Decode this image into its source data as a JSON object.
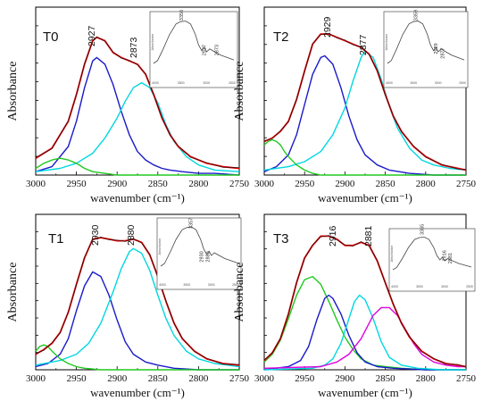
{
  "chart_data": [
    {
      "type": "line",
      "panel_label": "T0",
      "ylabel": "Absorbance",
      "xlabel": "wavenumber (cm⁻¹)",
      "xlim": [
        3000,
        2750
      ],
      "x_ticks": [
        "3000",
        "2950",
        "2900",
        "2850",
        "2800",
        "2750"
      ],
      "peak_labels": [
        "2927",
        "2873"
      ],
      "series": [
        {
          "color": "#e00000",
          "x": [
            3000,
            2980,
            2960,
            2950,
            2940,
            2930,
            2925,
            2915,
            2905,
            2895,
            2885,
            2875,
            2865,
            2855,
            2845,
            2835,
            2825,
            2810,
            2790,
            2770,
            2750
          ],
          "values": [
            0.1,
            0.16,
            0.32,
            0.48,
            0.66,
            0.8,
            0.82,
            0.8,
            0.73,
            0.7,
            0.68,
            0.66,
            0.6,
            0.48,
            0.34,
            0.24,
            0.17,
            0.11,
            0.07,
            0.05,
            0.04
          ]
        },
        {
          "color": "#1a1ac8",
          "x": [
            3000,
            2980,
            2960,
            2950,
            2940,
            2930,
            2925,
            2915,
            2905,
            2895,
            2885,
            2875,
            2865,
            2855,
            2845,
            2835,
            2820,
            2800,
            2780,
            2750
          ],
          "values": [
            0.02,
            0.05,
            0.17,
            0.32,
            0.52,
            0.68,
            0.7,
            0.66,
            0.54,
            0.38,
            0.24,
            0.14,
            0.09,
            0.06,
            0.04,
            0.03,
            0.02,
            0.01,
            0.01,
            0.0
          ]
        },
        {
          "color": "#00d8e0",
          "x": [
            3000,
            2970,
            2950,
            2930,
            2915,
            2900,
            2890,
            2880,
            2870,
            2860,
            2850,
            2840,
            2830,
            2815,
            2800,
            2780,
            2750
          ],
          "values": [
            0.02,
            0.04,
            0.07,
            0.13,
            0.22,
            0.34,
            0.44,
            0.52,
            0.55,
            0.52,
            0.43,
            0.3,
            0.2,
            0.11,
            0.06,
            0.03,
            0.02
          ]
        },
        {
          "color": "#20c820",
          "x": [
            3000,
            2990,
            2980,
            2970,
            2960,
            2950,
            2940,
            2930,
            2915,
            2900,
            2880,
            2750
          ],
          "values": [
            0.04,
            0.07,
            0.09,
            0.1,
            0.09,
            0.07,
            0.04,
            0.02,
            0.01,
            0.0,
            0.0,
            0.0
          ]
        }
      ],
      "inset": {
        "peak_labels": [
          "3356",
          "2927",
          "2873"
        ],
        "ylabel": "Absorbance",
        "x_ticks": [
          "4000",
          "3500",
          "3000",
          "2500"
        ]
      }
    },
    {
      "type": "line",
      "panel_label": "T2",
      "ylabel": "Absorbance",
      "xlabel": "wavenumber (cm⁻¹)",
      "xlim": [
        3000,
        2750
      ],
      "x_ticks": [
        "3000",
        "2950",
        "2900",
        "2850",
        "2800",
        "2750"
      ],
      "peak_labels": [
        "2929",
        "2877"
      ],
      "series": [
        {
          "color": "#e00000",
          "x": [
            3000,
            2990,
            2980,
            2970,
            2960,
            2950,
            2940,
            2930,
            2920,
            2910,
            2900,
            2890,
            2880,
            2870,
            2860,
            2850,
            2840,
            2830,
            2815,
            2800,
            2780,
            2760,
            2750
          ],
          "values": [
            0.2,
            0.22,
            0.26,
            0.32,
            0.45,
            0.62,
            0.78,
            0.84,
            0.84,
            0.82,
            0.8,
            0.78,
            0.76,
            0.72,
            0.62,
            0.48,
            0.35,
            0.26,
            0.17,
            0.11,
            0.06,
            0.04,
            0.03
          ]
        },
        {
          "color": "#1a1ac8",
          "x": [
            3000,
            2985,
            2970,
            2960,
            2950,
            2940,
            2930,
            2925,
            2915,
            2905,
            2895,
            2885,
            2875,
            2860,
            2845,
            2820,
            2790,
            2750
          ],
          "values": [
            0.02,
            0.05,
            0.12,
            0.24,
            0.42,
            0.6,
            0.7,
            0.71,
            0.66,
            0.52,
            0.35,
            0.21,
            0.12,
            0.06,
            0.03,
            0.01,
            0.0,
            0.0
          ]
        },
        {
          "color": "#00d8e0",
          "x": [
            3000,
            2970,
            2950,
            2930,
            2915,
            2900,
            2890,
            2880,
            2875,
            2865,
            2855,
            2845,
            2835,
            2820,
            2805,
            2790,
            2770,
            2750
          ],
          "values": [
            0.03,
            0.05,
            0.08,
            0.14,
            0.24,
            0.4,
            0.56,
            0.7,
            0.74,
            0.7,
            0.57,
            0.41,
            0.28,
            0.16,
            0.09,
            0.06,
            0.04,
            0.03
          ]
        },
        {
          "color": "#20c820",
          "x": [
            3000,
            2995,
            2990,
            2985,
            2980,
            2975,
            2970,
            2960,
            2950,
            2940,
            2930,
            2900,
            2750
          ],
          "values": [
            0.18,
            0.2,
            0.21,
            0.2,
            0.18,
            0.14,
            0.11,
            0.06,
            0.03,
            0.01,
            0.0,
            0.0,
            0.0
          ]
        }
      ],
      "inset": {
        "peak_labels": [
          "3359",
          "2929",
          "2877"
        ],
        "ylabel": "Absorbance",
        "x_ticks": [
          "4000",
          "3500",
          "3000",
          "2500"
        ]
      }
    },
    {
      "type": "line",
      "panel_label": "T1",
      "ylabel": "Absorbance",
      "xlabel": "wavenumber (cm⁻¹)",
      "xlim": [
        3000,
        2750
      ],
      "x_ticks": [
        "3000",
        "2950",
        "2900",
        "2850",
        "2800",
        "2750"
      ],
      "peak_labels": [
        "2930",
        "2880"
      ],
      "series": [
        {
          "color": "#e00000",
          "x": [
            3000,
            2990,
            2980,
            2970,
            2960,
            2950,
            2940,
            2930,
            2920,
            2910,
            2900,
            2890,
            2880,
            2870,
            2860,
            2850,
            2840,
            2830,
            2820,
            2805,
            2790,
            2770,
            2750
          ],
          "values": [
            0.1,
            0.13,
            0.17,
            0.24,
            0.37,
            0.55,
            0.72,
            0.84,
            0.85,
            0.84,
            0.83,
            0.83,
            0.84,
            0.82,
            0.74,
            0.6,
            0.44,
            0.3,
            0.2,
            0.12,
            0.07,
            0.04,
            0.03
          ]
        },
        {
          "color": "#1a1ac8",
          "x": [
            3000,
            2985,
            2970,
            2960,
            2950,
            2940,
            2930,
            2920,
            2910,
            2900,
            2890,
            2880,
            2865,
            2850,
            2830,
            2800,
            2750
          ],
          "values": [
            0.02,
            0.04,
            0.1,
            0.2,
            0.38,
            0.54,
            0.63,
            0.6,
            0.48,
            0.32,
            0.18,
            0.1,
            0.05,
            0.03,
            0.01,
            0.0,
            0.0
          ]
        },
        {
          "color": "#00d8e0",
          "x": [
            3000,
            2970,
            2950,
            2935,
            2920,
            2905,
            2895,
            2885,
            2880,
            2870,
            2860,
            2850,
            2840,
            2830,
            2815,
            2800,
            2780,
            2750
          ],
          "values": [
            0.03,
            0.06,
            0.1,
            0.17,
            0.3,
            0.5,
            0.65,
            0.76,
            0.78,
            0.75,
            0.64,
            0.48,
            0.33,
            0.22,
            0.12,
            0.07,
            0.04,
            0.02
          ]
        },
        {
          "color": "#20c820",
          "x": [
            3000,
            2995,
            2990,
            2985,
            2980,
            2970,
            2960,
            2950,
            2940,
            2920,
            2900,
            2750
          ],
          "values": [
            0.12,
            0.15,
            0.16,
            0.15,
            0.12,
            0.07,
            0.04,
            0.02,
            0.01,
            0.0,
            0.0,
            0.0
          ]
        }
      ],
      "inset": {
        "peak_labels": [
          "3357",
          "2930",
          "2880"
        ],
        "ylabel": "Absorbance",
        "x_ticks": [
          "4000",
          "3500",
          "3000",
          "2500"
        ]
      }
    },
    {
      "type": "line",
      "panel_label": "T3",
      "ylabel": "Absorbance",
      "xlabel": "wavenumber (cm⁻¹)",
      "xlim": [
        3000,
        2750
      ],
      "x_ticks": [
        "3000",
        "2950",
        "2900",
        "2850",
        "2800",
        "2750"
      ],
      "peak_labels": [
        "2916",
        "2881"
      ],
      "series": [
        {
          "color": "#e00000",
          "x": [
            3000,
            2990,
            2980,
            2970,
            2960,
            2950,
            2940,
            2930,
            2920,
            2910,
            2900,
            2890,
            2880,
            2870,
            2860,
            2850,
            2840,
            2830,
            2820,
            2805,
            2790,
            2775,
            2760,
            2750
          ],
          "values": [
            0.06,
            0.11,
            0.2,
            0.36,
            0.56,
            0.72,
            0.8,
            0.86,
            0.86,
            0.84,
            0.8,
            0.8,
            0.82,
            0.8,
            0.7,
            0.56,
            0.42,
            0.3,
            0.21,
            0.12,
            0.07,
            0.04,
            0.03,
            0.02
          ]
        },
        {
          "color": "#20c820",
          "x": [
            3000,
            2990,
            2980,
            2970,
            2960,
            2950,
            2940,
            2930,
            2920,
            2910,
            2900,
            2890,
            2880,
            2865,
            2850,
            2830,
            2800,
            2750
          ],
          "values": [
            0.05,
            0.1,
            0.19,
            0.33,
            0.48,
            0.58,
            0.6,
            0.55,
            0.44,
            0.32,
            0.21,
            0.13,
            0.07,
            0.03,
            0.02,
            0.01,
            0.0,
            0.0
          ]
        },
        {
          "color": "#1a1ac8",
          "x": [
            3000,
            2970,
            2955,
            2945,
            2935,
            2925,
            2920,
            2915,
            2905,
            2895,
            2885,
            2875,
            2860,
            2840,
            2800,
            2750
          ],
          "values": [
            0.0,
            0.02,
            0.06,
            0.15,
            0.32,
            0.46,
            0.48,
            0.46,
            0.36,
            0.22,
            0.11,
            0.05,
            0.02,
            0.01,
            0.0,
            0.0
          ]
        },
        {
          "color": "#00d8e0",
          "x": [
            3000,
            2940,
            2925,
            2915,
            2905,
            2895,
            2888,
            2882,
            2875,
            2865,
            2855,
            2845,
            2830,
            2810,
            2780,
            2750
          ],
          "values": [
            0.0,
            0.01,
            0.03,
            0.07,
            0.17,
            0.33,
            0.44,
            0.48,
            0.45,
            0.33,
            0.18,
            0.08,
            0.03,
            0.01,
            0.0,
            0.0
          ]
        },
        {
          "color": "#e000e0",
          "x": [
            3000,
            2930,
            2910,
            2895,
            2880,
            2870,
            2865,
            2855,
            2845,
            2835,
            2825,
            2815,
            2805,
            2790,
            2775,
            2760,
            2750
          ],
          "values": [
            0.01,
            0.02,
            0.05,
            0.1,
            0.2,
            0.3,
            0.35,
            0.4,
            0.4,
            0.35,
            0.26,
            0.17,
            0.1,
            0.05,
            0.03,
            0.02,
            0.02
          ]
        }
      ],
      "inset": {
        "peak_labels": [
          "3365",
          "2916",
          "2881"
        ],
        "ylabel": "Absorbance",
        "x_ticks": [
          "4000",
          "3500",
          "3000",
          "2500"
        ]
      }
    }
  ]
}
